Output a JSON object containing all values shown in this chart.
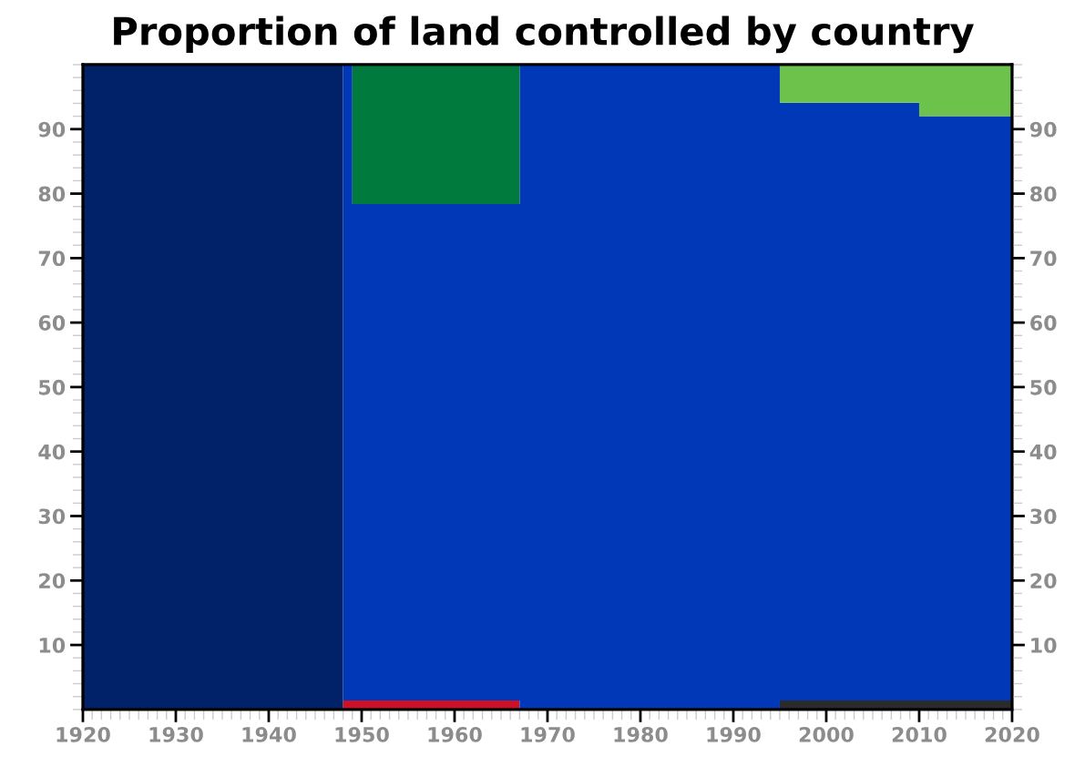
{
  "chart_data": {
    "type": "area",
    "title": "Proportion of land controlled by country",
    "stacked": true,
    "x": [
      1920,
      1948,
      1948,
      1949,
      1949,
      1967,
      1967,
      1995,
      1995,
      2010,
      2010,
      2020
    ],
    "series": [
      {
        "color": "#ce1126",
        "values": [
          null,
          null,
          1.4,
          1.4,
          1.4,
          1.4,
          null,
          null,
          null,
          null,
          null,
          null
        ]
      },
      {
        "color": "#2b2b2b",
        "values": [
          null,
          null,
          null,
          null,
          null,
          null,
          null,
          null,
          1.4,
          1.4,
          1.4,
          1.4
        ]
      },
      {
        "color": "#012169",
        "values": [
          100,
          100,
          null,
          null,
          null,
          null,
          null,
          null,
          null,
          null,
          null,
          null
        ]
      },
      {
        "color": "#0038b8",
        "values": [
          null,
          null,
          98.6,
          98.6,
          77,
          77,
          100,
          100,
          92.7,
          92.7,
          90.6,
          90.6
        ]
      },
      {
        "color": "#007a3d",
        "values": [
          null,
          null,
          null,
          null,
          21.6,
          21.6,
          null,
          null,
          null,
          null,
          null,
          null
        ]
      },
      {
        "color": "#6cc24a",
        "values": [
          null,
          null,
          null,
          null,
          null,
          null,
          null,
          null,
          5.9,
          5.9,
          8,
          8
        ]
      }
    ],
    "xlim": [
      1920,
      2020
    ],
    "xticks": [
      1920,
      1930,
      1940,
      1950,
      1960,
      1970,
      1980,
      1990,
      2000,
      2010,
      2020
    ],
    "ylim": [
      0,
      100
    ],
    "yticks": [
      10,
      20,
      30,
      40,
      50,
      60,
      70,
      80,
      90
    ],
    "y2lim": [
      0,
      100
    ],
    "y2ticks": [
      10,
      20,
      30,
      40,
      50,
      60,
      70,
      80,
      90
    ]
  }
}
